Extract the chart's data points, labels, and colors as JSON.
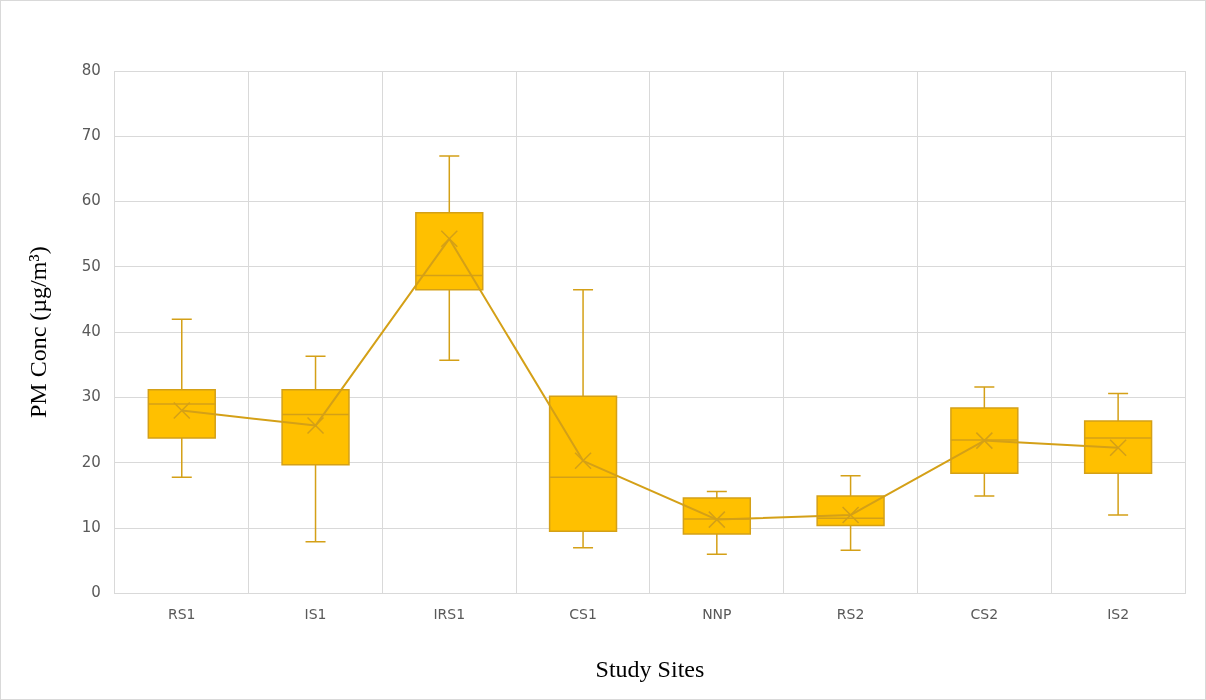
{
  "chart_data": {
    "type": "box",
    "xlabel": "Study Sites",
    "ylabel": "PM Conc (µg/m³)",
    "categories": [
      "RS1",
      "IS1",
      "IRS1",
      "CS1",
      "NNP",
      "RS2",
      "CS2",
      "IS2"
    ],
    "ylim": [
      0,
      80
    ],
    "yticks": [
      0,
      10,
      20,
      30,
      40,
      50,
      60,
      70,
      80
    ],
    "grid": true,
    "series": [
      {
        "type": "box",
        "color": "#ffc000",
        "boxes": [
          {
            "low": 17.8,
            "q1": 23.8,
            "median": 29,
            "q3": 31.2,
            "high": 42,
            "mean": 28
          },
          {
            "low": 7.9,
            "q1": 19.7,
            "median": 27.4,
            "q3": 31.2,
            "high": 36.3,
            "mean": 25.7
          },
          {
            "low": 35.7,
            "q1": 46.5,
            "median": 48.7,
            "q3": 58.3,
            "high": 67,
            "mean": 54.3
          },
          {
            "low": 7,
            "q1": 9.5,
            "median": 17.8,
            "q3": 30.2,
            "high": 46.5,
            "mean": 20.3
          },
          {
            "low": 6,
            "q1": 9.1,
            "median": 11.4,
            "q3": 14.6,
            "high": 15.6,
            "mean": 11.3
          },
          {
            "low": 6.6,
            "q1": 10.4,
            "median": 11.5,
            "q3": 14.9,
            "high": 18,
            "mean": 12
          },
          {
            "low": 14.9,
            "q1": 18.4,
            "median": 23.5,
            "q3": 28.4,
            "high": 31.6,
            "mean": 23.4
          },
          {
            "low": 12,
            "q1": 18.4,
            "median": 23.8,
            "q3": 26.4,
            "high": 30.6,
            "mean": 22.3
          }
        ]
      },
      {
        "type": "line",
        "color": "#d4a017",
        "values": [
          28,
          25.7,
          54.3,
          20.3,
          11.3,
          12,
          23.4,
          22.3
        ]
      }
    ]
  }
}
